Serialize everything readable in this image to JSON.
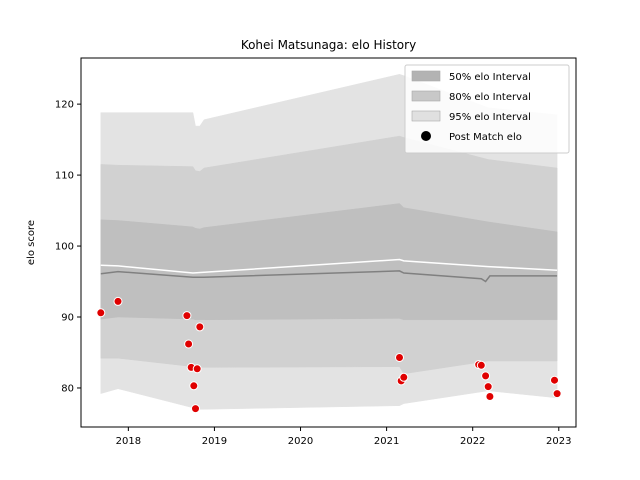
{
  "chart_data": {
    "type": "area",
    "title": "Kohei Matsunaga: elo History",
    "xlabel": "",
    "ylabel": "elo score",
    "xlim": [
      2017.45,
      2023.2
    ],
    "ylim": [
      74.5,
      126.5
    ],
    "x_ticks": [
      2018,
      2019,
      2020,
      2021,
      2022,
      2023
    ],
    "x_tick_labels": [
      "2018",
      "2019",
      "2020",
      "2021",
      "2022",
      "2023"
    ],
    "y_ticks": [
      80,
      90,
      100,
      110,
      120
    ],
    "y_tick_labels": [
      "80",
      "90",
      "100",
      "110",
      "120"
    ],
    "grid": false,
    "legend_position": "top-right",
    "bands": [
      {
        "name": "95% elo Interval",
        "color": "#e3e3e3",
        "x": [
          2017.68,
          2017.88,
          2018.75,
          2018.78,
          2018.83,
          2018.88,
          2021.15,
          2021.2,
          2022.18,
          2022.98
        ],
        "upper": [
          118.8,
          118.8,
          118.8,
          116.9,
          116.9,
          117.8,
          124.2,
          124.0,
          119.5,
          118.5
        ],
        "lower": [
          79.2,
          79.9,
          77.2,
          77.1,
          77.0,
          77.0,
          77.5,
          77.8,
          79.6,
          78.6
        ]
      },
      {
        "name": "80% elo Interval",
        "color": "#d1d1d1",
        "x": [
          2017.68,
          2017.88,
          2018.75,
          2018.78,
          2018.83,
          2018.88,
          2021.15,
          2021.2,
          2022.18,
          2022.98
        ],
        "upper": [
          111.5,
          111.4,
          111.2,
          110.6,
          110.5,
          111.0,
          115.5,
          115.3,
          112.2,
          111.0
        ],
        "lower": [
          84.2,
          84.2,
          83.0,
          83.0,
          82.9,
          82.9,
          83.0,
          82.0,
          83.8,
          83.8
        ]
      },
      {
        "name": "50% elo Interval",
        "color": "#bfbfbf",
        "x": [
          2017.68,
          2017.88,
          2018.75,
          2018.78,
          2018.83,
          2018.88,
          2021.15,
          2021.2,
          2022.18,
          2022.98
        ],
        "upper": [
          103.7,
          103.6,
          102.7,
          102.5,
          102.4,
          102.6,
          106.0,
          105.4,
          103.4,
          102.0
        ],
        "lower": [
          89.7,
          90.0,
          89.7,
          89.6,
          89.6,
          89.6,
          89.8,
          89.6,
          89.6,
          89.6
        ]
      }
    ],
    "lines": [
      {
        "name": "mean",
        "color": "#ffffff",
        "x": [
          2017.68,
          2017.88,
          2018.75,
          2018.88,
          2021.15,
          2021.2,
          2022.18,
          2022.98
        ],
        "y": [
          97.3,
          97.2,
          96.2,
          96.3,
          98.1,
          97.9,
          97.1,
          96.6
        ]
      },
      {
        "name": "median",
        "color": "#808080",
        "x": [
          2017.68,
          2017.88,
          2018.75,
          2018.88,
          2021.15,
          2021.2,
          2022.1,
          2022.15,
          2022.2,
          2022.98
        ],
        "y": [
          96.1,
          96.4,
          95.6,
          95.6,
          96.5,
          96.2,
          95.4,
          95.0,
          95.8,
          95.8
        ]
      }
    ],
    "points": {
      "name": "Post Match elo",
      "color": "#e00000",
      "x": [
        2017.68,
        2017.88,
        2018.68,
        2018.7,
        2018.73,
        2018.76,
        2018.78,
        2018.8,
        2018.83,
        2021.15,
        2021.17,
        2021.2,
        2022.07,
        2022.1,
        2022.15,
        2022.18,
        2022.2,
        2022.95,
        2022.98
      ],
      "y": [
        90.6,
        92.2,
        90.2,
        86.2,
        82.9,
        80.3,
        77.1,
        82.7,
        88.6,
        84.3,
        81.0,
        81.5,
        83.3,
        83.2,
        81.7,
        80.2,
        78.8,
        81.1,
        79.2
      ]
    },
    "legend": [
      {
        "label": "50% elo Interval",
        "kind": "band",
        "color": "#b3b3b3"
      },
      {
        "label": "80% elo Interval",
        "kind": "band",
        "color": "#c8c8c8"
      },
      {
        "label": "95% elo Interval",
        "kind": "band",
        "color": "#e0e0e0"
      },
      {
        "label": "Post Match elo",
        "kind": "marker",
        "color": "#000000"
      }
    ]
  }
}
